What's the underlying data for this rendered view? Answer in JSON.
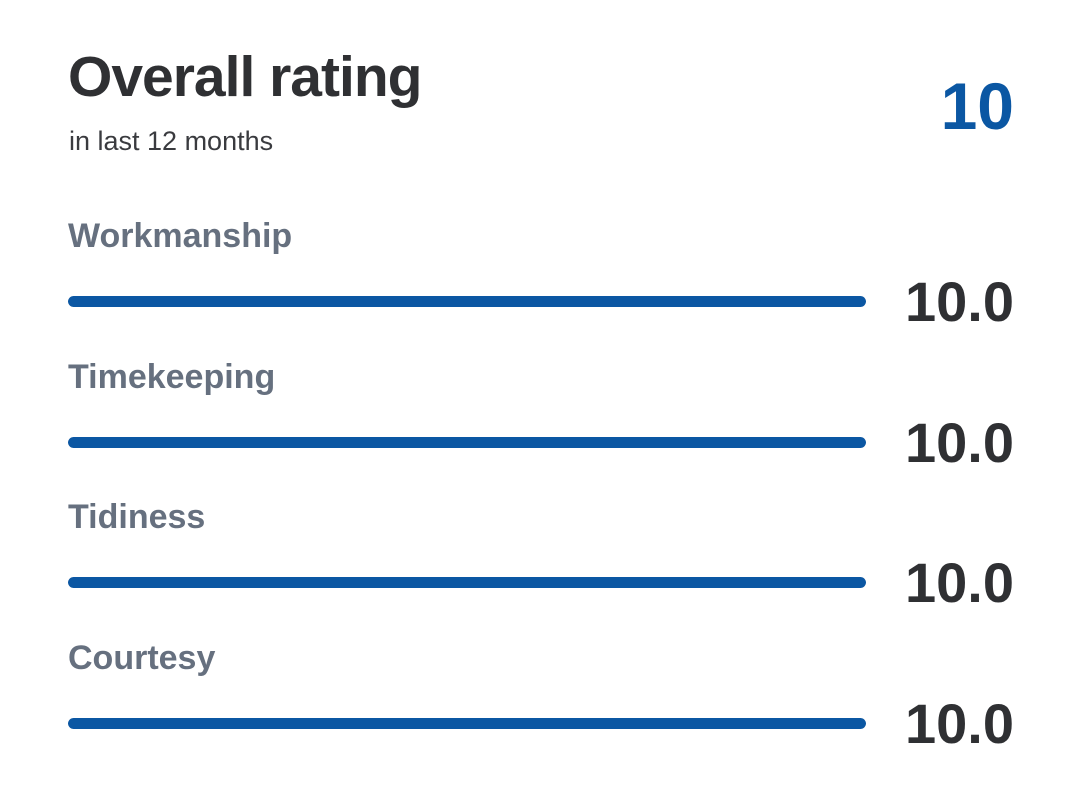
{
  "header": {
    "title": "Overall rating",
    "subtitle": "in last 12 months",
    "overall_score": "10"
  },
  "ratings": [
    {
      "label": "Workmanship",
      "value": "10.0",
      "fill_percent": 100
    },
    {
      "label": "Timekeeping",
      "value": "10.0",
      "fill_percent": 100
    },
    {
      "label": "Tidiness",
      "value": "10.0",
      "fill_percent": 100
    },
    {
      "label": "Courtesy",
      "value": "10.0",
      "fill_percent": 100
    }
  ],
  "colors": {
    "accent": "#0b57a3",
    "text": "#2f3033",
    "muted_label": "#66707f"
  }
}
